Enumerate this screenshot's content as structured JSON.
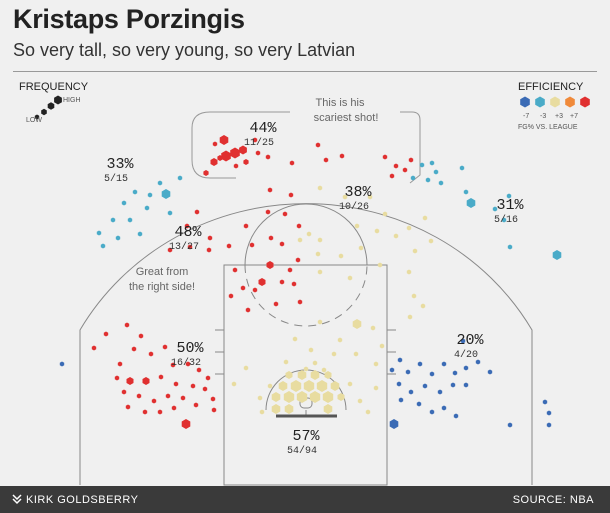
{
  "header": {
    "title": "Kristaps Porzingis",
    "subtitle": "So very tall, so very young, so very Latvian"
  },
  "legend": {
    "frequency_title": "FREQUENCY",
    "frequency_low": "LOW",
    "frequency_high": "HIGH",
    "efficiency_title": "EFFICIENCY",
    "efficiency_scale": [
      "-7",
      "-3",
      "+3",
      "+7"
    ],
    "efficiency_note": "FG% VS. LEAGUE",
    "efficiency_colors": [
      "#3b6bb5",
      "#4aabc8",
      "#e8dca0",
      "#f08a3a",
      "#e03030"
    ]
  },
  "annotations": {
    "scariest": [
      "This is his",
      "scariest shot!"
    ],
    "right_side": [
      "Great from",
      "the right side!"
    ]
  },
  "footer": {
    "credit": "KIRK GOLDSBERRY",
    "source": "SOURCE: NBA"
  },
  "chart_data": {
    "type": "scatter",
    "title": "Kristaps Porzingis",
    "subtitle": "So very tall, so very young, so very Latvian",
    "zones": [
      {
        "zone": "left corner three",
        "pct": "20%",
        "made_attempts": "4/20",
        "efficiency": "blue"
      },
      {
        "zone": "left wing three",
        "pct": "31%",
        "made_attempts": "5/16",
        "efficiency": "light blue"
      },
      {
        "zone": "top of key three",
        "pct": "44%",
        "made_attempts": "11/25",
        "efficiency": "red"
      },
      {
        "zone": "right wing three",
        "pct": "33%",
        "made_attempts": "5/15",
        "efficiency": "light blue"
      },
      {
        "zone": "left elbow midrange",
        "pct": "38%",
        "made_attempts": "10/26",
        "efficiency": "yellow"
      },
      {
        "zone": "right wing midrange",
        "pct": "48%",
        "made_attempts": "13/27",
        "efficiency": "red"
      },
      {
        "zone": "right baseline midrange",
        "pct": "50%",
        "made_attempts": "16/32",
        "efficiency": "red"
      },
      {
        "zone": "restricted area",
        "pct": "57%",
        "made_attempts": "54/94",
        "efficiency": "yellow"
      }
    ]
  }
}
